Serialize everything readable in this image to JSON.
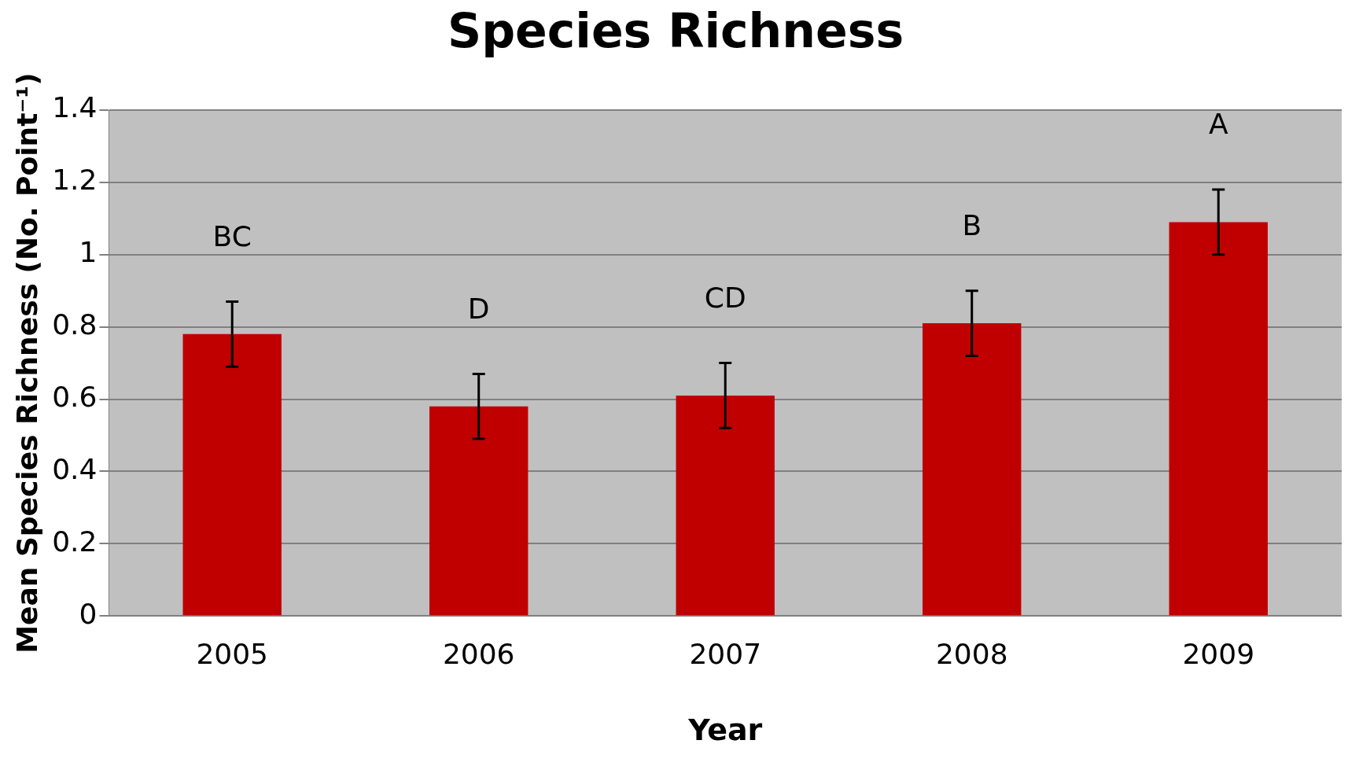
{
  "chart_data": {
    "type": "bar",
    "title": "Species Richness",
    "xlabel": "Year",
    "ylabel": "Mean Species Richness (No. Point⁻¹)",
    "categories": [
      "2005",
      "2006",
      "2007",
      "2008",
      "2009"
    ],
    "values": [
      0.78,
      0.58,
      0.61,
      0.81,
      1.09
    ],
    "errors": [
      0.09,
      0.09,
      0.09,
      0.09,
      0.09
    ],
    "color": "#c00000",
    "ylim": [
      0,
      1.4
    ],
    "yticks": [
      0,
      0.2,
      0.4,
      0.6,
      0.8,
      1,
      1.2,
      1.4
    ],
    "grid": "y",
    "annotations": [
      "BC",
      "D",
      "CD",
      "B",
      "A"
    ]
  }
}
